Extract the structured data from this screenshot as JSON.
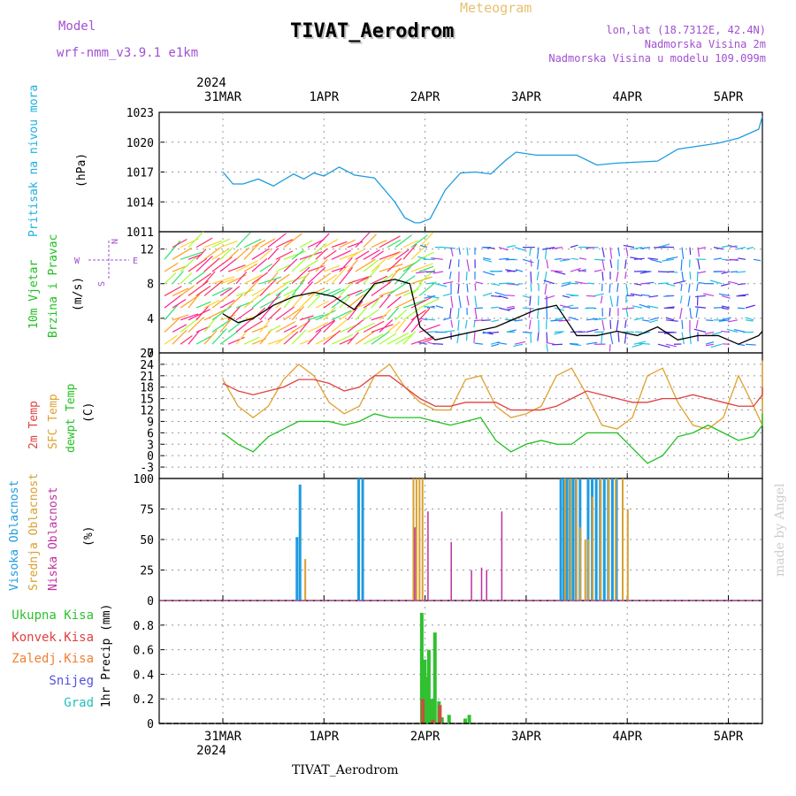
{
  "header": {
    "model_label": "Model",
    "model_name": "wrf-nmm_v3.9.1 e1km",
    "chart_type_label": "Meteogram",
    "station": "TIVAT_Aerodrom",
    "lonlat": "lon,lat (18.7312E, 42.4N)",
    "elevation": "Nadmorska Visina 2m",
    "model_elevation": "Nadmorska Visina u modelu 109.099m",
    "footer_station": "TIVAT_Aerodrom",
    "credit": "made by Angel",
    "year": "2024"
  },
  "colors": {
    "pressure": "#1e9be0",
    "temp2m": "#e04040",
    "sfc_temp": "#e0a030",
    "dewpoint": "#20c020",
    "high_cloud": "#1e9be0",
    "mid_cloud": "#d8a030",
    "low_cloud": "#c030a0",
    "total_precip": "#30c030",
    "conv_precip": "#e04040",
    "grid": "#999999"
  },
  "chart_data": [
    {
      "type": "line",
      "panel": "pressure",
      "ylabel_left": "Pritisak na nivou mora",
      "ylabel_unit": "(hPa)",
      "ylim": [
        1011,
        1023
      ],
      "yticks": [
        "1011",
        "1014",
        "1017",
        "1020",
        "1023"
      ],
      "x_days": [
        "31MAR",
        "1APR",
        "2APR",
        "3APR",
        "4APR",
        "5APR"
      ],
      "x": [
        0,
        0.1,
        0.2,
        0.35,
        0.5,
        0.7,
        0.8,
        0.9,
        1.0,
        1.15,
        1.3,
        1.5,
        1.7,
        1.8,
        1.9,
        1.95,
        2.05,
        2.2,
        2.35,
        2.5,
        2.65,
        2.8,
        2.9,
        3.1,
        3.25,
        3.5,
        3.7,
        3.9,
        4.1,
        4.3,
        4.5,
        4.7,
        4.9,
        5.1,
        5.3,
        5.5,
        5.6
      ],
      "series": [
        {
          "values": [
            1017.0,
            1015.8,
            1015.8,
            1016.3,
            1015.6,
            1016.8,
            1016.3,
            1016.9,
            1016.6,
            1017.5,
            1016.7,
            1016.4,
            1014.0,
            1012.4,
            1011.9,
            1011.9,
            1012.3,
            1015.2,
            1016.9,
            1017.0,
            1016.8,
            1018.2,
            1019.0,
            1018.7,
            1018.7,
            1018.7,
            1017.7,
            1017.9,
            1018.0,
            1018.1,
            1019.3,
            1019.6,
            1019.9,
            1020.4,
            1021.3,
            1022.6,
            1022.5
          ]
        }
      ]
    },
    {
      "type": "line",
      "panel": "wind",
      "ylabel_left": "10m Vjetar",
      "ylabel_left2": "Brzina i Pravac",
      "ylabel_unit": "(m/s)",
      "compass_labels": {
        "west": "W",
        "east": "E",
        "north": "N",
        "south": "S"
      },
      "ylim": [
        0,
        14
      ],
      "yticks": [
        "0",
        "4",
        "8",
        "12"
      ],
      "x": [
        0,
        0.15,
        0.3,
        0.5,
        0.7,
        0.9,
        1.1,
        1.3,
        1.5,
        1.7,
        1.85,
        1.95,
        2.1,
        2.3,
        2.5,
        2.7,
        2.9,
        3.1,
        3.3,
        3.5,
        3.7,
        3.9,
        4.1,
        4.3,
        4.5,
        4.7,
        4.9,
        5.1,
        5.3,
        5.5,
        5.6
      ],
      "series": [
        {
          "name": "speed",
          "values": [
            4.5,
            3.5,
            4.0,
            5.5,
            6.5,
            7.0,
            6.5,
            5.0,
            8.0,
            8.5,
            8.0,
            3.0,
            1.5,
            2.0,
            2.5,
            3.0,
            4.0,
            5.0,
            5.5,
            2.0,
            2.0,
            2.5,
            2.0,
            3.0,
            1.5,
            2.0,
            2.0,
            1.0,
            2.0,
            2.5,
            2.5
          ]
        }
      ]
    },
    {
      "type": "line",
      "panel": "temperature",
      "ylabel_left": "2m Temp",
      "ylabel_left2": "SFC Temp",
      "ylabel_left3": "dewpt Temp",
      "ylabel_unit": "(C)",
      "ylim": [
        -6,
        27
      ],
      "yticks": [
        "-3",
        "0",
        "3",
        "6",
        "9",
        "12",
        "15",
        "18",
        "21",
        "24",
        "27"
      ],
      "x": [
        0,
        0.15,
        0.3,
        0.45,
        0.6,
        0.75,
        0.9,
        1.05,
        1.2,
        1.35,
        1.5,
        1.65,
        1.8,
        1.95,
        2.1,
        2.25,
        2.4,
        2.55,
        2.7,
        2.85,
        3.0,
        3.15,
        3.3,
        3.45,
        3.6,
        3.75,
        3.9,
        4.05,
        4.2,
        4.35,
        4.5,
        4.65,
        4.8,
        4.95,
        5.1,
        5.25,
        5.4,
        5.6
      ],
      "series": [
        {
          "name": "2m Temp",
          "values": [
            19,
            17,
            16,
            17,
            18,
            20,
            20,
            19,
            17,
            18,
            21,
            21,
            18,
            15,
            13,
            13,
            14,
            14,
            14,
            12,
            12,
            12,
            13,
            15,
            17,
            16,
            15,
            14,
            14,
            15,
            15,
            16,
            15,
            14,
            13,
            13,
            16,
            18
          ]
        },
        {
          "name": "SFC Temp",
          "values": [
            20,
            13,
            10,
            13,
            20,
            24,
            21,
            14,
            11,
            13,
            21,
            24,
            18,
            14,
            12,
            12,
            20,
            21,
            13,
            10,
            11,
            13,
            21,
            23,
            16,
            8,
            7,
            10,
            21,
            23,
            14,
            8,
            7,
            10,
            21,
            13,
            8,
            25
          ]
        },
        {
          "name": "dewpt Temp",
          "values": [
            6,
            3,
            1,
            5,
            7,
            9,
            9,
            9,
            8,
            9,
            11,
            10,
            10,
            10,
            9,
            8,
            9,
            10,
            4,
            1,
            3,
            4,
            3,
            3,
            6,
            6,
            6,
            2,
            -2,
            0,
            5,
            6,
            8,
            6,
            4,
            5,
            8,
            11
          ]
        }
      ]
    },
    {
      "type": "bar",
      "panel": "clouds",
      "ylabel_left": "Visoka Oblacnost",
      "ylabel_left2": "Srednja Oblacnost",
      "ylabel_left3": "Niska Oblacnost",
      "ylabel_unit": "(%)",
      "ylim": [
        0,
        100
      ],
      "yticks": [
        "0",
        "25",
        "50",
        "75",
        "100"
      ],
      "series": [
        {
          "name": "high",
          "x": [
            0.72,
            0.75,
            1.33,
            1.37,
            3.33,
            3.36,
            3.39,
            3.42,
            3.45,
            3.48,
            3.52,
            3.6,
            3.64,
            3.68,
            3.72,
            3.76,
            3.8,
            3.84,
            3.88
          ],
          "values": [
            52,
            95,
            100,
            100,
            100,
            100,
            100,
            100,
            100,
            100,
            100,
            100,
            100,
            100,
            100,
            100,
            100,
            100,
            100
          ]
        },
        {
          "name": "mid",
          "x": [
            0.78,
            1.85,
            1.88,
            1.91,
            1.94,
            3.35,
            3.4,
            3.46,
            3.5,
            3.55,
            3.58,
            3.62,
            3.7,
            3.78,
            3.85,
            3.92,
            3.97
          ],
          "values": [
            34,
            100,
            100,
            100,
            100,
            100,
            100,
            100,
            60,
            50,
            50,
            85,
            100,
            100,
            100,
            100,
            75
          ]
        },
        {
          "name": "low",
          "x": [
            1.84,
            1.97,
            2.2,
            2.4,
            2.5,
            2.55,
            2.7
          ],
          "values": [
            60,
            73,
            48,
            25,
            27,
            25,
            73
          ]
        }
      ]
    },
    {
      "type": "bar",
      "panel": "precipitation",
      "ylabel_left": "1hr Precip (mm)",
      "legend": [
        "Ukupna Kisa",
        "Konvek.Kisa",
        "Zaledj.Kisa",
        "Snijeg",
        "Grad"
      ],
      "ylim": [
        0,
        1.0
      ],
      "yticks": [
        "0",
        "0.2",
        "0.4",
        "0.6",
        "0.8"
      ],
      "series": [
        {
          "name": "Ukupna Kisa",
          "x": [
            1.95,
            1.98,
            2.0,
            2.02,
            2.05,
            2.08,
            2.12,
            2.15,
            2.22,
            2.38,
            2.42
          ],
          "values": [
            0.9,
            0.52,
            0.38,
            0.6,
            0.2,
            0.74,
            0.18,
            0.05,
            0.07,
            0.04,
            0.07
          ]
        },
        {
          "name": "Konvek.Kisa",
          "x": [
            1.96,
            2.06,
            2.13
          ],
          "values": [
            0.2,
            0.03,
            0.15
          ]
        }
      ]
    }
  ]
}
